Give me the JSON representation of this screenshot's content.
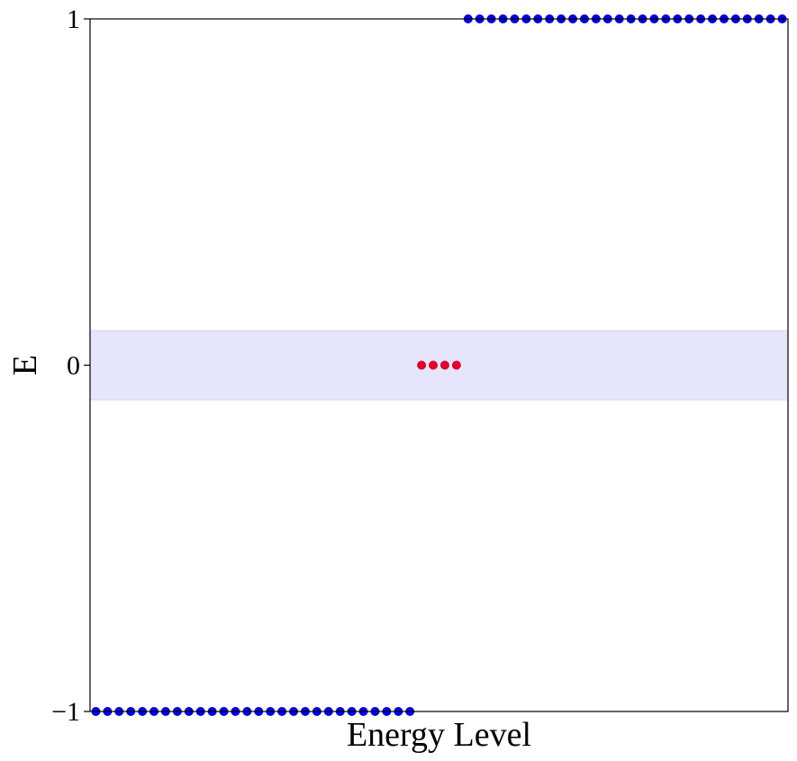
{
  "chart_data": {
    "type": "scatter",
    "title": "",
    "xlabel": "Energy Level",
    "ylabel": "E",
    "ylim": [
      -1,
      1
    ],
    "xlim": [
      -0.5,
      59.5
    ],
    "y_ticks": [
      -1,
      0,
      1
    ],
    "y_tick_labels": [
      "−1",
      "0",
      "1"
    ],
    "grid": false,
    "band": {
      "y_range": [
        -0.1,
        0.1
      ],
      "color": "#e5e5fb"
    },
    "series": [
      {
        "color": "#0000dd",
        "points": [
          {
            "x": 0,
            "y": -1
          },
          {
            "x": 1,
            "y": -1
          },
          {
            "x": 2,
            "y": -1
          },
          {
            "x": 3,
            "y": -1
          },
          {
            "x": 4,
            "y": -1
          },
          {
            "x": 5,
            "y": -1
          },
          {
            "x": 6,
            "y": -1
          },
          {
            "x": 7,
            "y": -1
          },
          {
            "x": 8,
            "y": -1
          },
          {
            "x": 9,
            "y": -1
          },
          {
            "x": 10,
            "y": -1
          },
          {
            "x": 11,
            "y": -1
          },
          {
            "x": 12,
            "y": -1
          },
          {
            "x": 13,
            "y": -1
          },
          {
            "x": 14,
            "y": -1
          },
          {
            "x": 15,
            "y": -1
          },
          {
            "x": 16,
            "y": -1
          },
          {
            "x": 17,
            "y": -1
          },
          {
            "x": 18,
            "y": -1
          },
          {
            "x": 19,
            "y": -1
          },
          {
            "x": 20,
            "y": -1
          },
          {
            "x": 21,
            "y": -1
          },
          {
            "x": 22,
            "y": -1
          },
          {
            "x": 23,
            "y": -1
          },
          {
            "x": 24,
            "y": -1
          },
          {
            "x": 25,
            "y": -1
          },
          {
            "x": 26,
            "y": -1
          },
          {
            "x": 27,
            "y": -1
          },
          {
            "x": 32,
            "y": 1
          },
          {
            "x": 33,
            "y": 1
          },
          {
            "x": 34,
            "y": 1
          },
          {
            "x": 35,
            "y": 1
          },
          {
            "x": 36,
            "y": 1
          },
          {
            "x": 37,
            "y": 1
          },
          {
            "x": 38,
            "y": 1
          },
          {
            "x": 39,
            "y": 1
          },
          {
            "x": 40,
            "y": 1
          },
          {
            "x": 41,
            "y": 1
          },
          {
            "x": 42,
            "y": 1
          },
          {
            "x": 43,
            "y": 1
          },
          {
            "x": 44,
            "y": 1
          },
          {
            "x": 45,
            "y": 1
          },
          {
            "x": 46,
            "y": 1
          },
          {
            "x": 47,
            "y": 1
          },
          {
            "x": 48,
            "y": 1
          },
          {
            "x": 49,
            "y": 1
          },
          {
            "x": 50,
            "y": 1
          },
          {
            "x": 51,
            "y": 1
          },
          {
            "x": 52,
            "y": 1
          },
          {
            "x": 53,
            "y": 1
          },
          {
            "x": 54,
            "y": 1
          },
          {
            "x": 55,
            "y": 1
          },
          {
            "x": 56,
            "y": 1
          },
          {
            "x": 57,
            "y": 1
          },
          {
            "x": 58,
            "y": 1
          },
          {
            "x": 59,
            "y": 1
          }
        ]
      },
      {
        "color": "#e0002a",
        "points": [
          {
            "x": 28,
            "y": 0
          },
          {
            "x": 29,
            "y": 0
          },
          {
            "x": 30,
            "y": 0
          },
          {
            "x": 31,
            "y": 0
          }
        ]
      }
    ]
  }
}
